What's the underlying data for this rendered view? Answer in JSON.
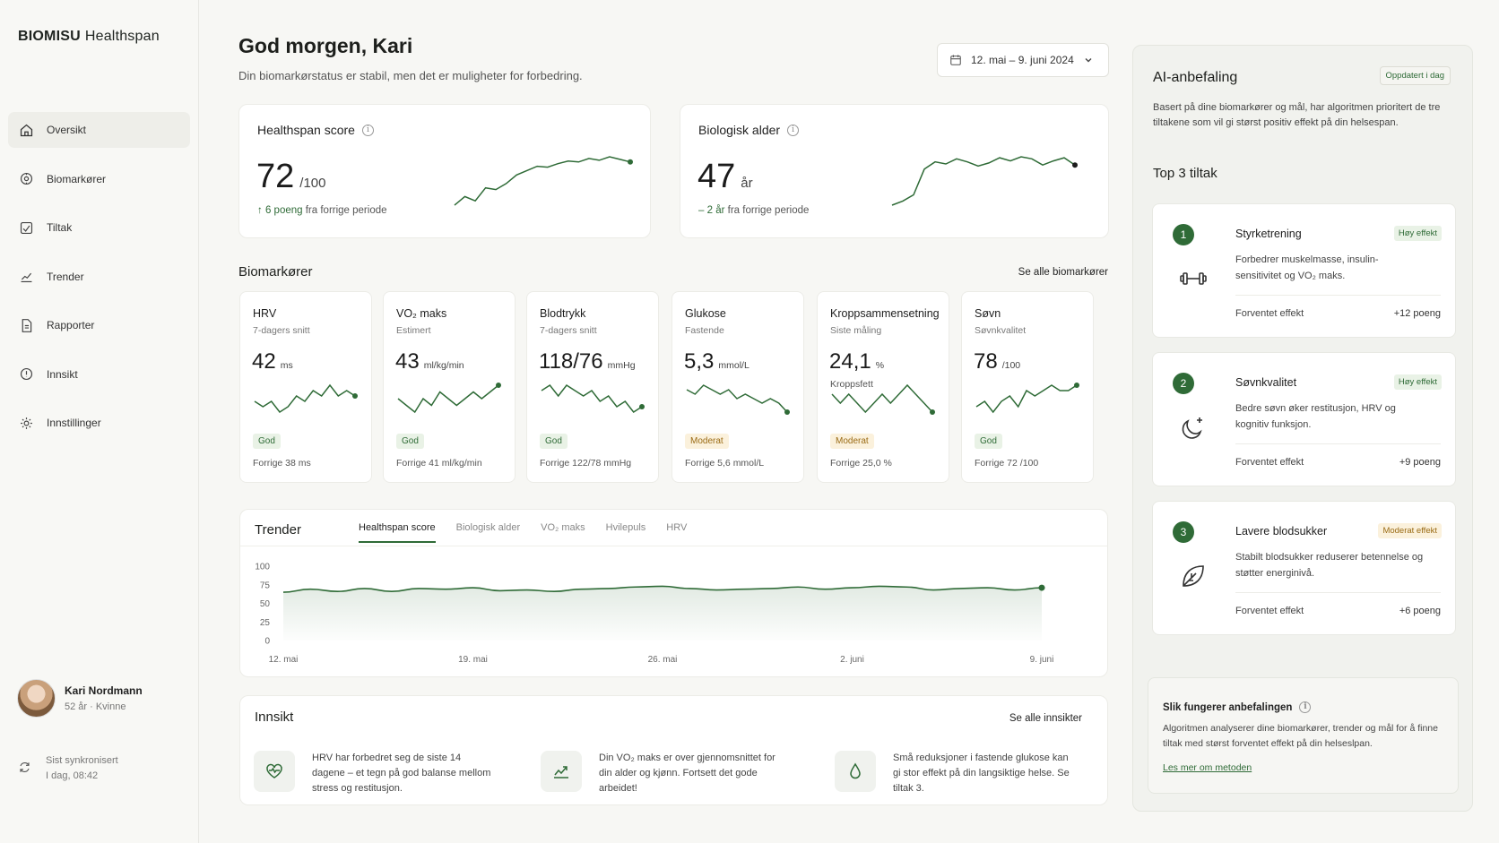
{
  "brand": {
    "name": "BIOMISU",
    "product": "Healthspan"
  },
  "nav": [
    {
      "label": "Oversikt",
      "icon": "home-icon"
    },
    {
      "label": "Biomarkører",
      "icon": "biomarker-icon"
    },
    {
      "label": "Tiltak",
      "icon": "checklist-icon"
    },
    {
      "label": "Trender",
      "icon": "trend-chart-icon"
    },
    {
      "label": "Rapporter",
      "icon": "report-icon"
    },
    {
      "label": "Innsikt",
      "icon": "insight-icon"
    },
    {
      "label": "Innstillinger",
      "icon": "gear-icon"
    }
  ],
  "user": {
    "name": "Kari Nordmann",
    "meta": "52 år · Kvinne"
  },
  "sync": {
    "line1": "Sist synkronisert",
    "line2": "I dag, 08:42"
  },
  "header": {
    "greeting": "God morgen, Kari",
    "subtitle": "Din biomarkørstatus er stabil, men det er muligheter for forbedring.",
    "date_range": "12. mai – 9. juni 2024"
  },
  "healthspan": {
    "title": "Healthspan score",
    "value": "72",
    "unit": "/100",
    "delta_arrow": "↑",
    "delta_value": "6 poeng",
    "delta_text": "fra forrige periode",
    "spark": [
      3,
      4,
      3.5,
      5,
      4.8,
      5.5,
      6.5,
      7,
      7.5,
      7.4,
      7.8,
      8.1,
      8,
      8.4,
      8.2,
      8.6,
      8.3,
      8.0
    ]
  },
  "bioage": {
    "title": "Biologisk alder",
    "value": "47",
    "unit": "år",
    "delta_arrow": "–",
    "delta_value": "2 år",
    "delta_text": "fra forrige periode",
    "spark": [
      3,
      3.4,
      4,
      6.5,
      7.2,
      7,
      7.5,
      7.2,
      6.8,
      7.1,
      7.6,
      7.3,
      7.7,
      7.5,
      6.9,
      7.3,
      7.6,
      6.9
    ]
  },
  "biomarkers_section": {
    "title": "Biomarkører",
    "link": "Se alle biomarkører"
  },
  "biomarkers": [
    {
      "name": "HRV",
      "sub": "7-dagers snitt",
      "value": "42",
      "unit": "ms",
      "extra": "",
      "status": "God",
      "status_type": "good",
      "prev": "Forrige 38 ms",
      "spark": [
        5,
        4,
        5,
        3,
        4,
        6,
        5,
        7,
        6,
        8,
        6,
        7,
        6
      ]
    },
    {
      "name": "VO₂ maks",
      "sub": "Estimert",
      "value": "43",
      "unit": "ml/kg/min",
      "extra": "",
      "status": "God",
      "status_type": "good",
      "prev": "Forrige 41 ml/kg/min",
      "spark": [
        6,
        5,
        4,
        6,
        5,
        7,
        6,
        5,
        6,
        7,
        6,
        7,
        8
      ]
    },
    {
      "name": "Blodtrykk",
      "sub": "7-dagers snitt",
      "value": "118/76",
      "unit": "mmHg",
      "extra": "",
      "status": "God",
      "status_type": "good",
      "prev": "Forrige 122/78 mmHg",
      "spark": [
        7,
        8,
        6,
        8,
        7,
        6,
        7,
        5,
        6,
        4,
        5,
        3,
        4
      ]
    },
    {
      "name": "Glukose",
      "sub": "Fastende",
      "value": "5,3",
      "unit": "mmol/L",
      "extra": "",
      "status": "Moderat",
      "status_type": "moderate",
      "prev": "Forrige 5,6 mmol/L",
      "spark": [
        7,
        6,
        8,
        7,
        6,
        7,
        5,
        6,
        5,
        4,
        5,
        4,
        2
      ]
    },
    {
      "name": "Kroppsammensetning",
      "sub": "Siste måling",
      "value": "24,1",
      "unit": "%",
      "extra": "Kroppsfett",
      "status": "Moderat",
      "status_type": "moderate",
      "prev": "Forrige 25,0 %",
      "spark": [
        6,
        5,
        6,
        5,
        4,
        5,
        6,
        5,
        6,
        7,
        6,
        5,
        4
      ]
    },
    {
      "name": "Søvn",
      "sub": "Søvnkvalitet",
      "value": "78",
      "unit": "/100",
      "extra": "",
      "status": "God",
      "status_type": "good",
      "prev": "Forrige 72 /100",
      "spark": [
        4,
        5,
        3,
        5,
        6,
        4,
        7,
        6,
        7,
        8,
        7,
        7,
        8
      ]
    }
  ],
  "trends": {
    "title": "Trender",
    "tabs": [
      "Healthspan score",
      "Biologisk alder",
      "VO₂ maks",
      "Hvilepuls",
      "HRV"
    ]
  },
  "chart_data": {
    "type": "area",
    "title": "",
    "x": [
      "12. mai",
      "13. mai",
      "14. mai",
      "15. mai",
      "16. mai",
      "17. mai",
      "18. mai",
      "19. mai",
      "20. mai",
      "21. mai",
      "22. mai",
      "23. mai",
      "24. mai",
      "25. mai",
      "26. mai",
      "27. mai",
      "28. mai",
      "29. mai",
      "30. mai",
      "31. mai",
      "1. juni",
      "2. juni",
      "3. juni",
      "4. juni",
      "5. juni",
      "6. juni",
      "7. juni",
      "8. juni",
      "9. juni"
    ],
    "xticks": [
      "12. mai",
      "19. mai",
      "26. mai",
      "2. juni",
      "9. juni"
    ],
    "series": [
      {
        "values": [
          65,
          69,
          66,
          70,
          66,
          70,
          69,
          71,
          67,
          68,
          66,
          69,
          70,
          72,
          73,
          70,
          68,
          69,
          70,
          72,
          69,
          71,
          73,
          72,
          68,
          70,
          71,
          68,
          71
        ]
      }
    ],
    "ylim": [
      0,
      100
    ],
    "yticks": [
      0,
      25,
      50,
      75,
      100
    ],
    "grid": false
  },
  "insights": {
    "title": "Innsikt",
    "link": "Se alle innsikter",
    "items": [
      {
        "icon": "heart-pulse-icon",
        "text": "HRV har forbedret seg de siste 14 dagene – et tegn på god balanse mellom stress og restitusjon."
      },
      {
        "icon": "trend-up-icon",
        "text": "Din VO₂ maks er over gjennomsnittet for din alder og kjønn. Fortsett det gode arbeidet!"
      },
      {
        "icon": "drop-icon",
        "text": "Små reduksjoner i fastende glukose kan gi stor effekt på din langsiktige helse. Se tiltak 3."
      }
    ]
  },
  "ai": {
    "title": "AI-anbefaling",
    "updated": "Oppdatert i dag",
    "desc": "Basert på dine biomarkører og mål, har algoritmen prioritert de tre tiltakene som vil gi størst positiv effekt på din helsespan.",
    "top_title": "Top 3 tiltak",
    "recs": [
      {
        "num": "1",
        "name": "Styrketrening",
        "badge": "Høy effekt",
        "badge_type": "high",
        "desc": "Forbedrer muskelmasse, insulin-sensitivitet og VO₂ maks.",
        "effect_label": "Forventet effekt",
        "points": "+12 poeng",
        "icon": "dumbbell-icon"
      },
      {
        "num": "2",
        "name": "Søvnkvalitet",
        "badge": "Høy effekt",
        "badge_type": "high",
        "desc": "Bedre søvn øker restitusjon, HRV og kognitiv funksjon.",
        "effect_label": "Forventet effekt",
        "points": "+9 poeng",
        "icon": "moon-icon"
      },
      {
        "num": "3",
        "name": "Lavere blodsukker",
        "badge": "Moderat effekt",
        "badge_type": "moderate",
        "desc": "Stabilt blodsukker reduserer betennelse og støtter energinivå.",
        "effect_label": "Forventet effekt",
        "points": "+6 poeng",
        "icon": "leaf-icon"
      }
    ],
    "how": {
      "title": "Slik fungerer anbefalingen",
      "desc": "Algoritmen analyserer dine biomarkører, trender og mål for å finne tiltak med størst forventet effekt på din helseslpan.",
      "link": "Les mer om metoden"
    }
  },
  "colors": {
    "accent": "#2f6b37",
    "moderate": "#9a6b14",
    "background": "#f7f7f4"
  }
}
